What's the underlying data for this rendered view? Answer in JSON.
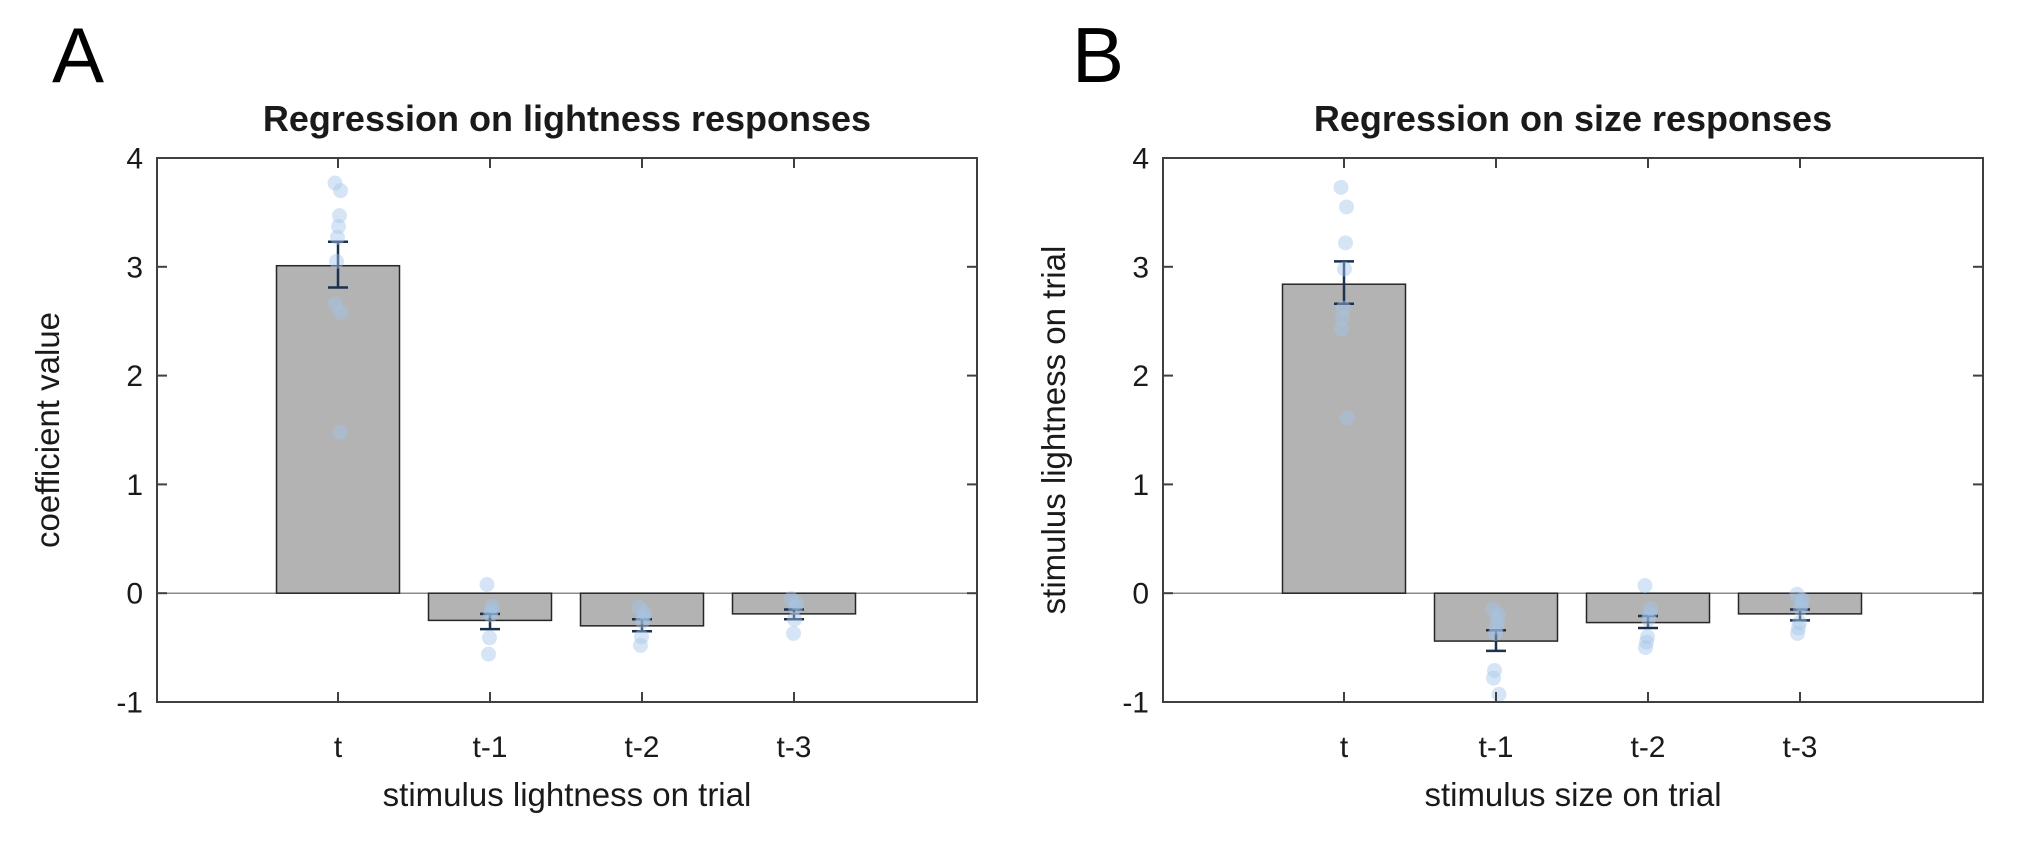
{
  "figure": {
    "background": "#ffffff",
    "panel_letters": [
      "A",
      "B"
    ]
  },
  "chart_data": [
    {
      "type": "bar",
      "panel": "A",
      "title": "Regression on lightness responses",
      "xlabel": "stimulus lightness on trial",
      "ylabel": "coefficient value",
      "categories": [
        "t",
        "t-1",
        "t-2",
        "t-3"
      ],
      "values": [
        3.01,
        -0.25,
        -0.3,
        -0.19
      ],
      "error_low": [
        2.81,
        -0.33,
        -0.35,
        -0.24
      ],
      "error_high": [
        3.23,
        -0.19,
        -0.24,
        -0.15
      ],
      "scatter": [
        [
          3.77,
          3.7,
          3.47,
          3.37,
          3.27,
          3.05,
          2.66,
          2.58,
          1.48
        ],
        [
          0.08,
          -0.12,
          -0.16,
          -0.2,
          -0.41,
          -0.56
        ],
        [
          -0.13,
          -0.18,
          -0.22,
          -0.26,
          -0.4,
          -0.48
        ],
        [
          -0.05,
          -0.09,
          -0.13,
          -0.24,
          -0.37
        ]
      ],
      "ylim": [
        -1,
        4
      ],
      "yticks": [
        -1,
        0,
        1,
        2,
        3,
        4
      ],
      "grid": false,
      "legend": null
    },
    {
      "type": "bar",
      "panel": "B",
      "title": "Regression on size responses",
      "xlabel": "stimulus size on trial",
      "ylabel": "stimulus lightness on trial",
      "categories": [
        "t",
        "t-1",
        "t-2",
        "t-3"
      ],
      "values": [
        2.84,
        -0.44,
        -0.27,
        -0.19
      ],
      "error_low": [
        2.66,
        -0.53,
        -0.32,
        -0.25
      ],
      "error_high": [
        3.05,
        -0.34,
        -0.21,
        -0.15
      ],
      "scatter": [
        [
          3.73,
          3.55,
          3.22,
          2.98,
          2.62,
          2.53,
          2.43,
          1.61
        ],
        [
          -0.15,
          -0.2,
          -0.26,
          -0.31,
          -0.37,
          -0.71,
          -0.78,
          -0.93
        ],
        [
          0.07,
          -0.14,
          -0.19,
          -0.24,
          -0.4,
          -0.45,
          -0.5
        ],
        [
          -0.01,
          -0.06,
          -0.1,
          -0.14,
          -0.27,
          -0.32,
          -0.37
        ]
      ],
      "ylim": [
        -1,
        4
      ],
      "yticks": [
        -1,
        0,
        1,
        2,
        3,
        4
      ],
      "grid": false,
      "legend": null
    }
  ],
  "style_colors": {
    "bar_fill": "#b3b3b3",
    "bar_edge": "#262626",
    "error_bar": "#1b3150",
    "scatter_dot": "#a3c6e8",
    "axis_box": "#404040",
    "zero_line": "#8c8c8c",
    "text": "#1a1a1a"
  }
}
